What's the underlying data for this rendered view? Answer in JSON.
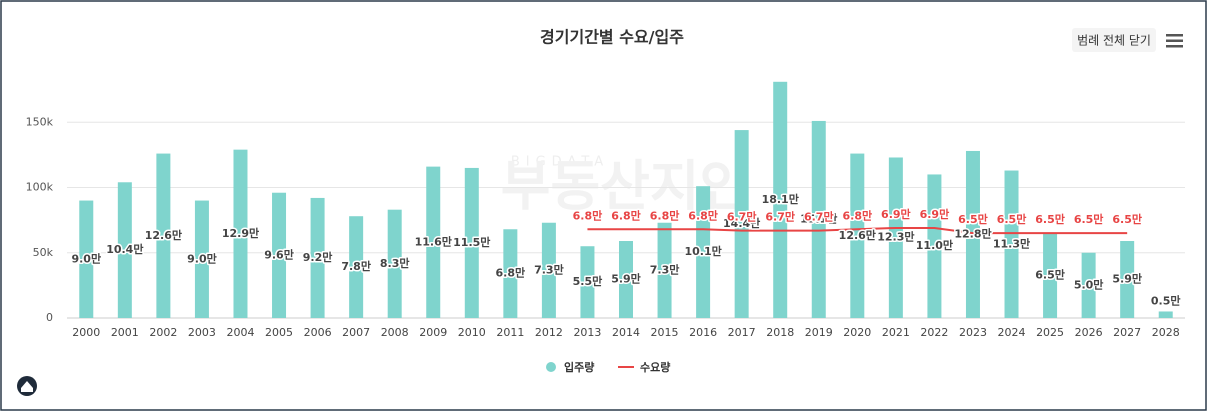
{
  "chart_data": {
    "type": "bar_line",
    "title": "경기기간별 수요/입주",
    "button": "범례 전체 닫기",
    "watermark": {
      "small": "BIGDATA",
      "big": "부동산지인"
    },
    "categories": [
      "2000",
      "2001",
      "2002",
      "2003",
      "2004",
      "2005",
      "2006",
      "2007",
      "2008",
      "2009",
      "2010",
      "2011",
      "2012",
      "2013",
      "2014",
      "2015",
      "2016",
      "2017",
      "2018",
      "2019",
      "2020",
      "2021",
      "2022",
      "2023",
      "2024",
      "2025",
      "2026",
      "2027",
      "2028"
    ],
    "series": [
      {
        "name": "입주량",
        "color": "#7fd4cd",
        "kind": "bar",
        "values": [
          90000,
          104000,
          126000,
          90000,
          129000,
          96000,
          92000,
          78000,
          83000,
          116000,
          115000,
          68000,
          73000,
          55000,
          59000,
          73000,
          101000,
          144000,
          181000,
          151000,
          126000,
          123000,
          110000,
          128000,
          113000,
          65000,
          50000,
          59000,
          5000
        ],
        "value_labels": [
          "9.0만",
          "10.4만",
          "12.6만",
          "9.0만",
          "12.9만",
          "9.6만",
          "9.2만",
          "7.8만",
          "8.3만",
          "11.6만",
          "11.5만",
          "6.8만",
          "7.3만",
          "5.5만",
          "5.9만",
          "7.3만",
          "10.1만",
          "14.4만",
          "18.1만",
          "15.1만",
          "12.6만",
          "12.3만",
          "11.0만",
          "12.8만",
          "11.3만",
          "6.5만",
          "5.0만",
          "5.9만",
          "0.5만"
        ]
      },
      {
        "name": "수요량",
        "color": "#e84545",
        "kind": "line",
        "values": [
          null,
          null,
          null,
          null,
          null,
          null,
          null,
          null,
          null,
          null,
          null,
          null,
          null,
          68000,
          68000,
          68000,
          68000,
          67000,
          67000,
          67000,
          68000,
          69000,
          69000,
          65000,
          65000,
          65000,
          65000,
          65000,
          null
        ],
        "value_labels": [
          null,
          null,
          null,
          null,
          null,
          null,
          null,
          null,
          null,
          null,
          null,
          null,
          null,
          "6.8만",
          "6.8만",
          "6.8만",
          "6.8만",
          "6.7만",
          "6.7만",
          "6.7만",
          "6.8만",
          "6.9만",
          "6.9만",
          "6.5만",
          "6.5만",
          "6.5만",
          "6.5만",
          "6.5만",
          null
        ]
      }
    ],
    "ylim": [
      0,
      200000
    ],
    "yticks": [
      0,
      {
        "value": 50000,
        "label": "50k"
      },
      {
        "value": 100000,
        "label": "100k"
      },
      {
        "value": 150000,
        "label": "150k"
      }
    ],
    "grid": true
  }
}
